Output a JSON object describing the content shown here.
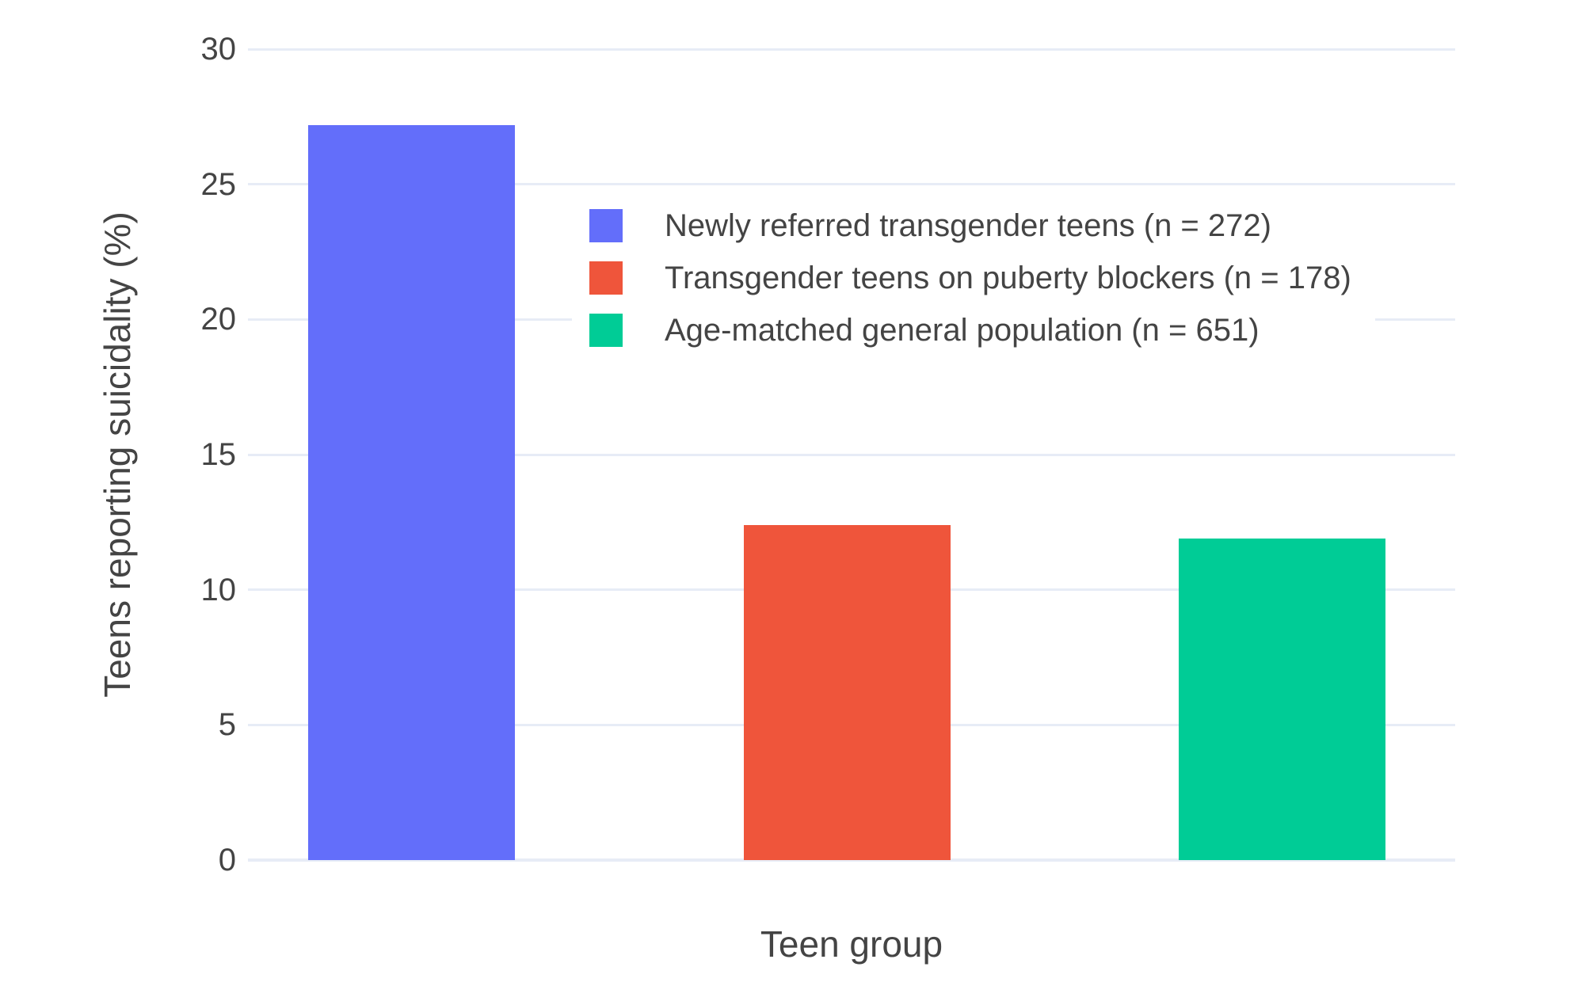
{
  "chart_data": {
    "type": "bar",
    "title": "",
    "xlabel": "Teen group",
    "ylabel": "Teens reporting suicidality (%)",
    "categories": [
      "Newly referred transgender teens (n = 272)",
      "Transgender teens on puberty blockers (n = 178)",
      "Age-matched general population (n = 651)"
    ],
    "values": [
      27.2,
      12.4,
      11.9
    ],
    "colors": [
      "#636EFA",
      "#EF553B",
      "#00CC96"
    ],
    "ylim": [
      0,
      30
    ],
    "yticks": [
      0,
      5,
      10,
      15,
      20,
      25,
      30
    ],
    "grid": true,
    "grid_color": "#E7ECF6",
    "text_color": "#444444",
    "background_color": "#FFFFFF",
    "legend": {
      "position": "inside-top-right",
      "items": [
        {
          "label": "Newly referred transgender teens (n = 272)",
          "color": "#636EFA"
        },
        {
          "label": "Transgender teens on puberty blockers (n = 178)",
          "color": "#EF553B"
        },
        {
          "label": "Age-matched general population (n = 651)",
          "color": "#00CC96"
        }
      ]
    }
  }
}
